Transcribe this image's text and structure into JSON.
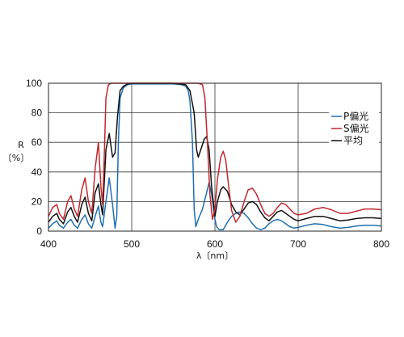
{
  "chart_data": {
    "type": "line",
    "title": "",
    "xlabel": "λ〔nm〕",
    "ylabel_lines": [
      "R",
      "〔%〕"
    ],
    "xlim": [
      400,
      800
    ],
    "ylim": [
      0,
      100
    ],
    "x_ticks": [
      400,
      500,
      600,
      700,
      800
    ],
    "y_ticks": [
      0,
      20,
      40,
      60,
      80,
      100
    ],
    "grid": true,
    "legend_position": "right",
    "series": [
      {
        "name": "P偏光",
        "color": "#1f6fb0",
        "points": [
          [
            400,
            2
          ],
          [
            405,
            5
          ],
          [
            410,
            7
          ],
          [
            413,
            4
          ],
          [
            418,
            2
          ],
          [
            423,
            6
          ],
          [
            427,
            8
          ],
          [
            431,
            4
          ],
          [
            435,
            2
          ],
          [
            440,
            8
          ],
          [
            444,
            11
          ],
          [
            448,
            5
          ],
          [
            452,
            2
          ],
          [
            456,
            10
          ],
          [
            460,
            17
          ],
          [
            463,
            6
          ],
          [
            465,
            3
          ],
          [
            469,
            20
          ],
          [
            473,
            36
          ],
          [
            477,
            18
          ],
          [
            480,
            2
          ],
          [
            482,
            10
          ],
          [
            484,
            60
          ],
          [
            486,
            90
          ],
          [
            490,
            97
          ],
          [
            495,
            99
          ],
          [
            500,
            99.5
          ],
          [
            520,
            99.5
          ],
          [
            550,
            99.5
          ],
          [
            560,
            99
          ],
          [
            565,
            98
          ],
          [
            568,
            95
          ],
          [
            570,
            88
          ],
          [
            573,
            60
          ],
          [
            575,
            15
          ],
          [
            577,
            3
          ],
          [
            580,
            8
          ],
          [
            585,
            15
          ],
          [
            590,
            26
          ],
          [
            593,
            33
          ],
          [
            596,
            25
          ],
          [
            600,
            8
          ],
          [
            602,
            3
          ],
          [
            605,
            1
          ],
          [
            610,
            1
          ],
          [
            615,
            6
          ],
          [
            620,
            10
          ],
          [
            625,
            12
          ],
          [
            630,
            13
          ],
          [
            635,
            12
          ],
          [
            640,
            9
          ],
          [
            645,
            5
          ],
          [
            650,
            2
          ],
          [
            655,
            1
          ],
          [
            660,
            2
          ],
          [
            665,
            5
          ],
          [
            670,
            7
          ],
          [
            675,
            8
          ],
          [
            680,
            7
          ],
          [
            685,
            5
          ],
          [
            690,
            3
          ],
          [
            695,
            2
          ],
          [
            700,
            2.5
          ],
          [
            710,
            4
          ],
          [
            720,
            5
          ],
          [
            730,
            4.5
          ],
          [
            740,
            3
          ],
          [
            750,
            2
          ],
          [
            760,
            2.5
          ],
          [
            770,
            3.5
          ],
          [
            780,
            4
          ],
          [
            790,
            4
          ],
          [
            800,
            3.5
          ]
        ]
      },
      {
        "name": "S偏光",
        "color": "#c0272d",
        "points": [
          [
            400,
            10
          ],
          [
            405,
            16
          ],
          [
            410,
            18
          ],
          [
            413,
            12
          ],
          [
            418,
            8
          ],
          [
            423,
            20
          ],
          [
            427,
            24
          ],
          [
            431,
            15
          ],
          [
            435,
            10
          ],
          [
            440,
            28
          ],
          [
            444,
            36
          ],
          [
            448,
            20
          ],
          [
            452,
            12
          ],
          [
            456,
            42
          ],
          [
            460,
            60
          ],
          [
            463,
            30
          ],
          [
            465,
            18
          ],
          [
            467,
            50
          ],
          [
            469,
            90
          ],
          [
            472,
            99
          ],
          [
            475,
            100
          ],
          [
            500,
            100
          ],
          [
            550,
            100
          ],
          [
            580,
            100
          ],
          [
            585,
            99
          ],
          [
            588,
            90
          ],
          [
            591,
            60
          ],
          [
            594,
            25
          ],
          [
            597,
            8
          ],
          [
            600,
            15
          ],
          [
            603,
            35
          ],
          [
            607,
            50
          ],
          [
            610,
            54
          ],
          [
            613,
            48
          ],
          [
            617,
            28
          ],
          [
            620,
            14
          ],
          [
            625,
            6
          ],
          [
            630,
            10
          ],
          [
            635,
            20
          ],
          [
            640,
            28
          ],
          [
            645,
            29
          ],
          [
            650,
            25
          ],
          [
            655,
            18
          ],
          [
            660,
            12
          ],
          [
            665,
            10
          ],
          [
            670,
            12
          ],
          [
            675,
            16
          ],
          [
            680,
            19
          ],
          [
            685,
            18
          ],
          [
            690,
            15
          ],
          [
            695,
            12
          ],
          [
            700,
            11
          ],
          [
            710,
            12
          ],
          [
            720,
            15
          ],
          [
            730,
            16
          ],
          [
            740,
            14.5
          ],
          [
            750,
            12
          ],
          [
            760,
            12
          ],
          [
            770,
            13.5
          ],
          [
            780,
            15
          ],
          [
            790,
            15
          ],
          [
            800,
            14.5
          ]
        ]
      },
      {
        "name": "平均",
        "color": "#111111",
        "points": [
          [
            400,
            6
          ],
          [
            405,
            10
          ],
          [
            410,
            12
          ],
          [
            413,
            8
          ],
          [
            418,
            5
          ],
          [
            423,
            13
          ],
          [
            427,
            16
          ],
          [
            431,
            10
          ],
          [
            435,
            6
          ],
          [
            440,
            18
          ],
          [
            444,
            23
          ],
          [
            448,
            12
          ],
          [
            452,
            7
          ],
          [
            456,
            26
          ],
          [
            460,
            32
          ],
          [
            463,
            18
          ],
          [
            465,
            11
          ],
          [
            469,
            55
          ],
          [
            473,
            66
          ],
          [
            477,
            50
          ],
          [
            480,
            53
          ],
          [
            483,
            78
          ],
          [
            486,
            95
          ],
          [
            490,
            98
          ],
          [
            495,
            99.5
          ],
          [
            500,
            100
          ],
          [
            520,
            100
          ],
          [
            550,
            100
          ],
          [
            565,
            99
          ],
          [
            570,
            95
          ],
          [
            575,
            80
          ],
          [
            578,
            55
          ],
          [
            580,
            50
          ],
          [
            583,
            55
          ],
          [
            587,
            62
          ],
          [
            590,
            64
          ],
          [
            593,
            55
          ],
          [
            596,
            30
          ],
          [
            600,
            10
          ],
          [
            603,
            20
          ],
          [
            607,
            28
          ],
          [
            610,
            30
          ],
          [
            615,
            27
          ],
          [
            620,
            18
          ],
          [
            625,
            13
          ],
          [
            630,
            11
          ],
          [
            635,
            15
          ],
          [
            640,
            19
          ],
          [
            645,
            20
          ],
          [
            650,
            18
          ],
          [
            655,
            13
          ],
          [
            660,
            9
          ],
          [
            665,
            7
          ],
          [
            670,
            10
          ],
          [
            675,
            13
          ],
          [
            680,
            14
          ],
          [
            685,
            12
          ],
          [
            690,
            10
          ],
          [
            695,
            8
          ],
          [
            700,
            7
          ],
          [
            710,
            8.5
          ],
          [
            720,
            10
          ],
          [
            730,
            10
          ],
          [
            740,
            8.5
          ],
          [
            750,
            7
          ],
          [
            760,
            7.5
          ],
          [
            770,
            8.5
          ],
          [
            780,
            9
          ],
          [
            790,
            9
          ],
          [
            800,
            8.5
          ]
        ]
      }
    ]
  }
}
